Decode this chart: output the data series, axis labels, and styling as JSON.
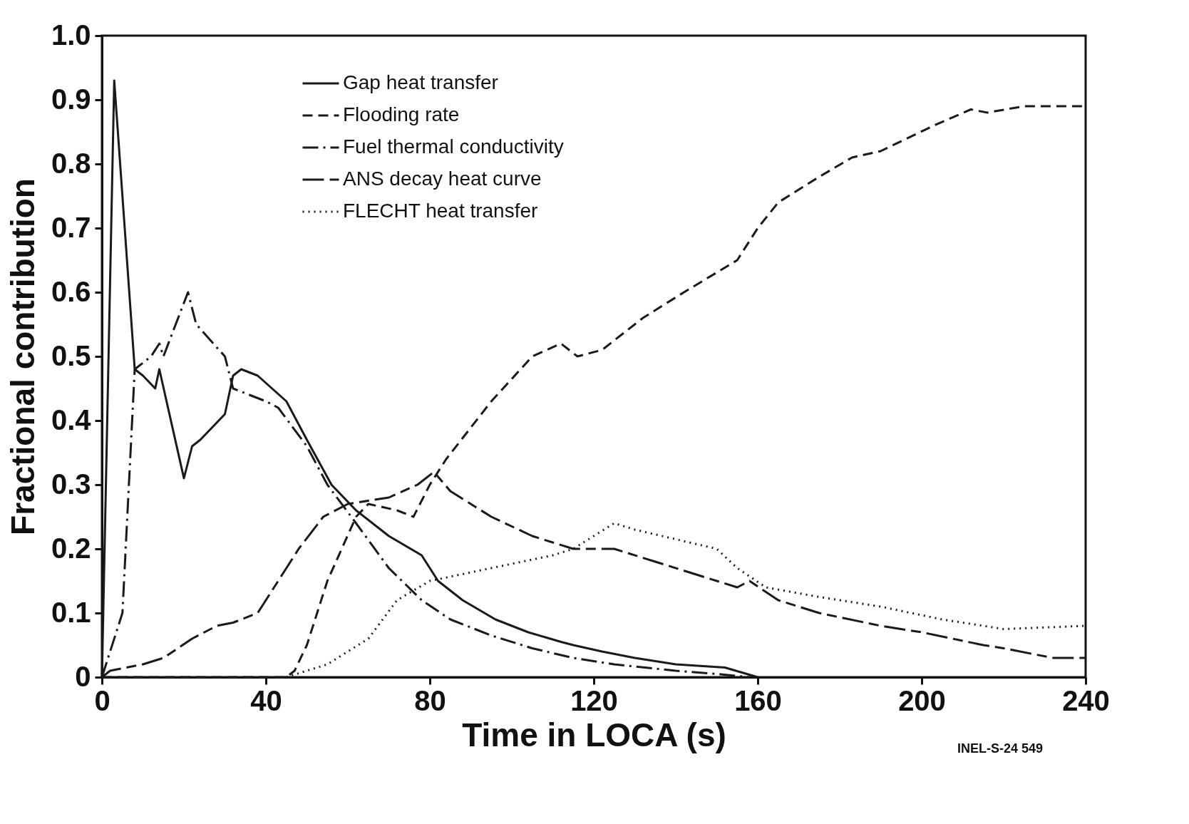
{
  "chart_data": {
    "type": "line",
    "xlabel": "Time in LOCA (s)",
    "ylabel": "Fractional contribution",
    "xlim": [
      0,
      240
    ],
    "xticks": [
      0,
      40,
      80,
      120,
      160,
      200,
      240
    ],
    "ylim": [
      0,
      1
    ],
    "yticks": [
      0,
      0.1,
      0.2,
      0.3,
      0.4,
      0.5,
      0.6,
      0.7,
      0.8,
      0.9,
      {
        "value": 1,
        "label": "1.0"
      }
    ],
    "legend": "top left",
    "grid": false,
    "annotations": [
      "INEL-S-24 549"
    ],
    "series": [
      {
        "name": "Gap heat transfer",
        "color": "#1a1a1a",
        "line_style": "solid",
        "x": [
          0,
          3,
          8,
          10,
          13,
          14,
          20,
          22,
          24,
          30,
          32,
          34,
          38,
          45,
          50,
          56,
          62,
          70,
          78,
          82,
          88,
          96,
          104,
          112,
          115,
          122,
          130,
          140,
          152,
          160
        ],
        "values": [
          0,
          0.93,
          0.48,
          0.47,
          0.45,
          0.48,
          0.31,
          0.36,
          0.37,
          0.41,
          0.47,
          0.48,
          0.47,
          0.43,
          0.37,
          0.3,
          0.26,
          0.22,
          0.19,
          0.15,
          0.12,
          0.09,
          0.07,
          0.055,
          0.05,
          0.04,
          0.03,
          0.02,
          0.015,
          0
        ]
      },
      {
        "name": "Flooding rate",
        "color": "#1a1a1a",
        "line_style": "dashed",
        "x": [
          0,
          45,
          47,
          50,
          55,
          62,
          65,
          72,
          76,
          80,
          84,
          95,
          105,
          112,
          116,
          122,
          132,
          142,
          155,
          160,
          165,
          175,
          183,
          190,
          203,
          212,
          216,
          225,
          240
        ],
        "values": [
          0,
          0,
          0.01,
          0.05,
          0.15,
          0.25,
          0.27,
          0.26,
          0.25,
          0.3,
          0.34,
          0.43,
          0.5,
          0.52,
          0.5,
          0.51,
          0.56,
          0.6,
          0.65,
          0.7,
          0.74,
          0.78,
          0.81,
          0.82,
          0.86,
          0.885,
          0.88,
          0.89,
          0.89
        ]
      },
      {
        "name": "Fuel thermal conductivity",
        "color": "#1a1a1a",
        "line_style": "dashdot",
        "x": [
          0,
          5,
          8,
          12,
          14,
          15,
          18,
          21,
          23,
          30,
          32,
          40,
          43,
          50,
          55,
          62,
          70,
          78,
          85,
          95,
          105,
          115,
          125,
          140,
          150,
          158
        ],
        "values": [
          0,
          0.1,
          0.48,
          0.5,
          0.52,
          0.5,
          0.55,
          0.6,
          0.55,
          0.5,
          0.45,
          0.43,
          0.42,
          0.36,
          0.3,
          0.24,
          0.17,
          0.12,
          0.09,
          0.065,
          0.045,
          0.03,
          0.02,
          0.01,
          0.005,
          0
        ]
      },
      {
        "name": "ANS decay heat curve",
        "color": "#1a1a1a",
        "line_style": "longdash",
        "x": [
          0,
          2,
          10,
          15,
          22,
          28,
          32,
          38,
          43,
          48,
          54,
          60,
          70,
          77,
          81,
          85,
          95,
          105,
          115,
          125,
          135,
          145,
          155,
          158,
          165,
          175,
          190,
          200,
          215,
          220,
          232,
          240
        ],
        "values": [
          0,
          0.01,
          0.02,
          0.03,
          0.06,
          0.08,
          0.085,
          0.1,
          0.15,
          0.2,
          0.25,
          0.27,
          0.28,
          0.3,
          0.32,
          0.29,
          0.25,
          0.22,
          0.2,
          0.2,
          0.18,
          0.16,
          0.14,
          0.15,
          0.12,
          0.1,
          0.08,
          0.07,
          0.05,
          0.045,
          0.03,
          0.03
        ]
      },
      {
        "name": "FLECHT heat transfer",
        "color": "#1a1a1a",
        "line_style": "dotted",
        "x": [
          45,
          55,
          65,
          72,
          80,
          95,
          110,
          115,
          125,
          130,
          140,
          150,
          155,
          162,
          175,
          190,
          205,
          220,
          240
        ],
        "values": [
          0,
          0.02,
          0.06,
          0.12,
          0.15,
          0.17,
          0.19,
          0.2,
          0.24,
          0.23,
          0.215,
          0.2,
          0.17,
          0.14,
          0.125,
          0.11,
          0.09,
          0.075,
          0.08
        ]
      }
    ]
  }
}
